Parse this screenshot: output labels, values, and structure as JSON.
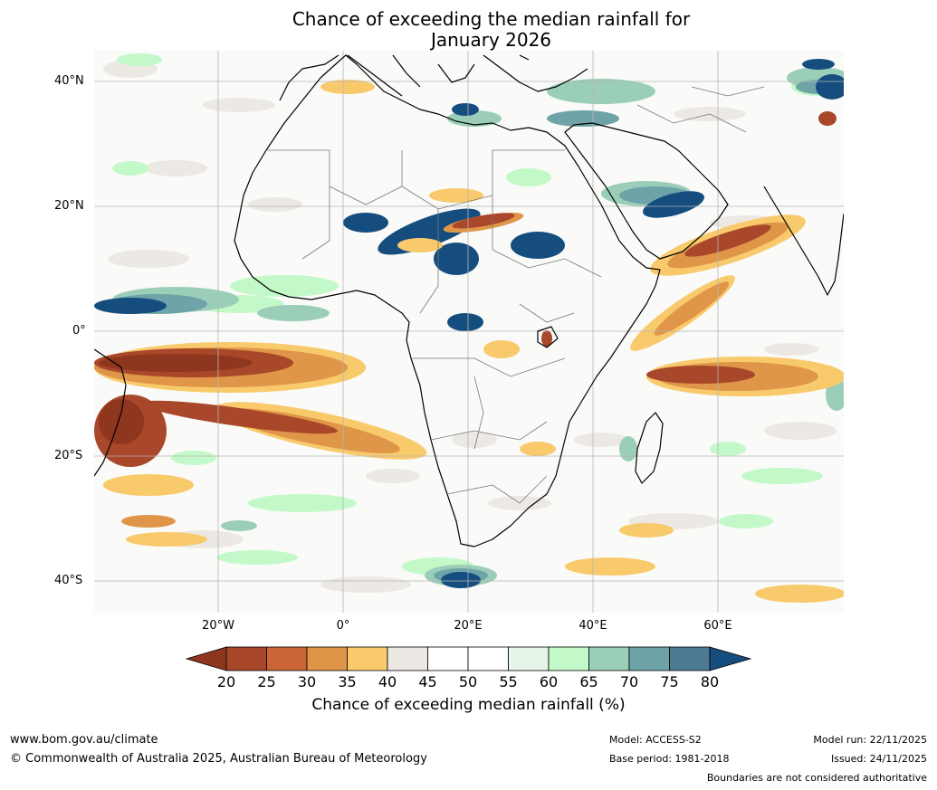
{
  "title": {
    "line1": "Chance of exceeding the median rainfall for",
    "line2": "January 2026"
  },
  "map": {
    "lat_labels": [
      "40°N",
      "20°N",
      "0°",
      "20°S",
      "40°S"
    ],
    "lon_labels": [
      "20°W",
      "0°",
      "20°E",
      "40°E",
      "60°E"
    ]
  },
  "legend": {
    "title": "Chance of exceeding median rainfall (%)",
    "ticks": [
      "20",
      "25",
      "30",
      "35",
      "40",
      "45",
      "50",
      "55",
      "60",
      "65",
      "70",
      "75",
      "80"
    ],
    "colors": [
      "#8f361e",
      "#a8472a",
      "#c96536",
      "#df9648",
      "#f9ca6c",
      "#ece9e4",
      "#ffffff",
      "#ffffff",
      "#e6f5e7",
      "#c3f9c8",
      "#9bceb8",
      "#6ea3a8",
      "#4d7b96",
      "#154d7e"
    ]
  },
  "footer": {
    "website": "www.bom.gov.au/climate",
    "copyright": "© Commonwealth of Australia 2025, Australian Bureau of Meteorology",
    "model": "Model: ACCESS-S2",
    "base_period": "Base period: 1981-2018",
    "model_run": "Model run: 22/11/2025",
    "issued": "Issued: 24/11/2025",
    "disclaimer": "Boundaries are not considered authoritative"
  }
}
